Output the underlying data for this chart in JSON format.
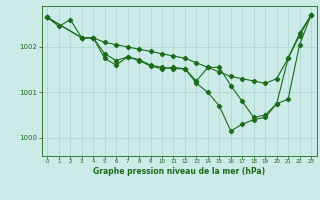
{
  "title": "Graphe pression niveau de la mer (hPa)",
  "background_color": "#cceae7",
  "line_color": "#1a6b1a",
  "grid_color": "#aad4d0",
  "xlim": [
    -0.5,
    23.5
  ],
  "ylim": [
    999.6,
    1002.9
  ],
  "yticks": [
    1000,
    1001,
    1002
  ],
  "xticks": [
    0,
    1,
    2,
    3,
    4,
    5,
    6,
    7,
    8,
    9,
    10,
    11,
    12,
    13,
    14,
    15,
    16,
    17,
    18,
    19,
    20,
    21,
    22,
    23
  ],
  "series1_x": [
    0,
    1,
    2,
    3,
    4,
    5,
    6,
    7,
    8,
    9,
    10,
    11,
    12,
    13,
    14,
    15,
    16,
    17,
    18,
    19,
    20,
    21,
    22,
    23
  ],
  "series1_y": [
    1002.65,
    1002.45,
    1002.6,
    1002.2,
    1002.2,
    1002.1,
    1002.05,
    1002.0,
    1001.95,
    1001.9,
    1001.85,
    1001.8,
    1001.75,
    1001.65,
    1001.55,
    1001.45,
    1001.35,
    1001.3,
    1001.25,
    1001.2,
    1001.3,
    1001.75,
    1002.3,
    1002.7
  ],
  "series2_x": [
    0,
    3,
    4,
    5,
    6,
    7,
    8,
    9,
    10,
    11,
    12,
    13,
    14,
    15,
    16,
    17,
    18,
    19,
    20,
    21,
    22,
    23
  ],
  "series2_y": [
    1002.65,
    1002.2,
    1002.2,
    1001.85,
    1001.7,
    1001.78,
    1001.72,
    1001.6,
    1001.55,
    1001.52,
    1001.52,
    1001.25,
    1001.55,
    1001.55,
    1001.15,
    1000.8,
    1000.45,
    1000.5,
    1000.75,
    1001.75,
    1002.25,
    1002.7
  ],
  "series3_x": [
    0,
    3,
    4,
    5,
    6,
    7,
    8,
    9,
    10,
    11,
    12,
    13,
    14,
    15,
    16,
    17,
    18,
    19,
    20,
    21,
    22,
    23
  ],
  "series3_y": [
    1002.65,
    1002.2,
    1002.2,
    1001.75,
    1001.6,
    1001.78,
    1001.7,
    1001.58,
    1001.52,
    1001.55,
    1001.52,
    1001.2,
    1001.0,
    1000.7,
    1000.15,
    1000.3,
    1000.4,
    1000.45,
    1000.75,
    1000.85,
    1002.05,
    1002.7
  ]
}
